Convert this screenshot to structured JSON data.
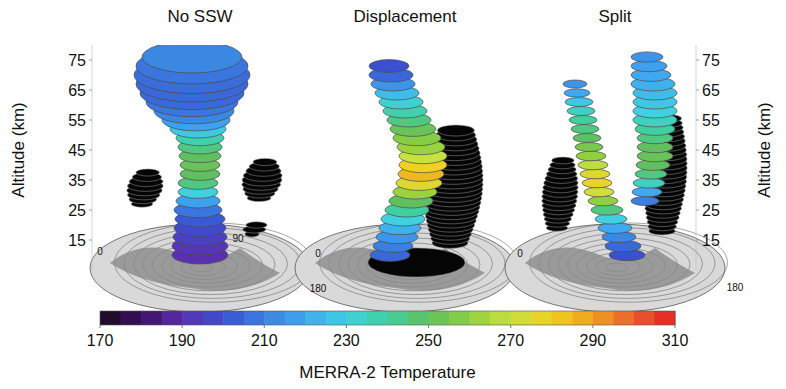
{
  "chart_data": {
    "type": "vortex_3d",
    "ylabel": "Altitude (km)",
    "ylim": [
      5,
      80
    ],
    "yticks": [
      15,
      25,
      35,
      45,
      55,
      65,
      75
    ],
    "colorbar": {
      "label": "MERRA-2 Temperature",
      "range": [
        170,
        310
      ],
      "ticks": [
        170,
        190,
        210,
        230,
        250,
        270,
        290,
        310
      ]
    },
    "panels": [
      {
        "title": "No SSW",
        "map_labels": [
          "0",
          "90",
          "180"
        ],
        "columns": [
          {
            "altitudes": [
              10,
              13,
              16,
              19,
              22,
              25,
              28,
              31,
              34,
              37,
              40,
              43,
              46,
              49,
              52,
              55,
              58,
              61,
              64,
              67,
              70,
              73,
              76
            ],
            "temperatures": [
              190,
              192,
              195,
              198,
              202,
              208,
              218,
              230,
              245,
              250,
              252,
              250,
              245,
              238,
              228,
              218,
              212,
              208,
              205,
              205,
              206,
              208,
              212
            ],
            "offsets": [
              0,
              0,
              0,
              0,
              0,
              -2,
              -2,
              -2,
              -2,
              0,
              0,
              0,
              0,
              0,
              -2,
              -4,
              -6,
              -8,
              -8,
              -8,
              -8,
              -8,
              -8
            ],
            "radii": [
              28,
              28,
              27,
              26,
              25,
              24,
              22,
              20,
              20,
              20,
              20,
              21,
              22,
              24,
              28,
              34,
              40,
              46,
              52,
              56,
              58,
              56,
              50
            ]
          }
        ]
      },
      {
        "title": "Displacement",
        "map_labels": [
          "0"
        ],
        "columns": [
          {
            "altitudes": [
              10,
              13,
              16,
              19,
              22,
              25,
              28,
              31,
              34,
              37,
              40,
              43,
              46,
              49,
              52,
              55,
              58,
              61,
              64,
              67,
              70,
              73
            ],
            "temperatures": [
              205,
              210,
              215,
              222,
              230,
              240,
              250,
              262,
              275,
              285,
              280,
              270,
              262,
              258,
              252,
              245,
              238,
              232,
              225,
              215,
              205,
              200
            ],
            "offsets": [
              -15,
              -12,
              -8,
              -5,
              -2,
              2,
              6,
              10,
              14,
              16,
              18,
              18,
              16,
              12,
              8,
              4,
              0,
              -4,
              -8,
              -12,
              -14,
              -16
            ],
            "radii": [
              20,
              20,
              21,
              21,
              22,
              22,
              22,
              22,
              23,
              23,
              24,
              24,
              24,
              24,
              23,
              22,
              22,
              22,
              22,
              22,
              22,
              20
            ]
          }
        ]
      },
      {
        "title": "Split",
        "map_labels": [
          "0",
          "180"
        ],
        "columns": [
          {
            "altitudes": [
              10,
              13,
              16,
              19,
              22,
              25,
              28,
              31,
              34,
              37,
              40,
              43,
              46,
              49,
              52,
              55,
              58,
              61,
              64,
              67
            ],
            "temperatures": [
              200,
              205,
              212,
              220,
              230,
              245,
              260,
              272,
              278,
              275,
              268,
              260,
              255,
              250,
              245,
              240,
              235,
              228,
              220,
              215
            ],
            "offsets": [
              12,
              8,
              4,
              0,
              -4,
              -8,
              -12,
              -16,
              -18,
              -20,
              -22,
              -24,
              -26,
              -28,
              -30,
              -32,
              -34,
              -36,
              -38,
              -40
            ],
            "radii": [
              18,
              18,
              17,
              17,
              16,
              16,
              15,
              15,
              15,
              15,
              15,
              15,
              14,
              14,
              14,
              14,
              14,
              14,
              13,
              12
            ]
          },
          {
            "altitudes": [
              28,
              31,
              34,
              37,
              40,
              43,
              46,
              49,
              52,
              55,
              58,
              61,
              64,
              67,
              70,
              73,
              76
            ],
            "temperatures": [
              210,
              220,
              235,
              245,
              250,
              252,
              250,
              245,
              240,
              235,
              230,
              228,
              225,
              222,
              220,
              218,
              215
            ],
            "offsets": [
              30,
              32,
              34,
              36,
              38,
              40,
              40,
              40,
              40,
              40,
              40,
              40,
              40,
              38,
              36,
              34,
              32
            ],
            "radii": [
              14,
              15,
              16,
              16,
              17,
              18,
              18,
              18,
              20,
              22,
              22,
              22,
              22,
              22,
              20,
              18,
              16
            ]
          }
        ]
      }
    ]
  }
}
